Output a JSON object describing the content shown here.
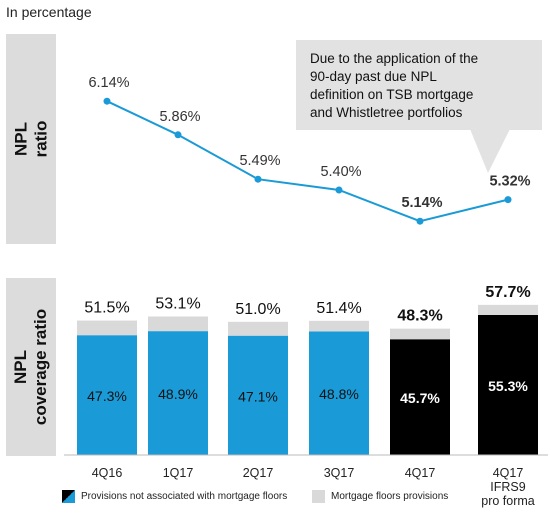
{
  "caption": "In percentage",
  "side_labels": {
    "npl_ratio": [
      "NPL",
      "ratio"
    ],
    "npl_coverage": [
      "NPL",
      "coverage ratio"
    ]
  },
  "callout": {
    "lines": [
      "Due to the application of the",
      "90-day past due NPL",
      "definition on TSB mortgage",
      "and Whistletree portfolios"
    ]
  },
  "legend": {
    "provisions": "Provisions not associated with mortgage floors",
    "floors": "Mortgage floors provisions"
  },
  "colors": {
    "line": "#1a9ad6",
    "bar_blue": "#1a9ad6",
    "bar_black": "#000000",
    "floors_grey": "#d9d9d9"
  },
  "chart_data": [
    {
      "type": "line",
      "categories": [
        "4Q16",
        "1Q17",
        "2Q17",
        "3Q17",
        "4Q17",
        "4Q17 IFRS9 pro forma"
      ],
      "series": [
        {
          "values": [
            6.14,
            5.86,
            5.49,
            5.4,
            5.14,
            5.32
          ]
        }
      ],
      "data_labels": [
        "6.14%",
        "5.86%",
        "5.49%",
        "5.40%",
        "5.14%",
        "5.32%"
      ],
      "bold_labels": [
        false,
        false,
        false,
        false,
        true,
        true
      ]
    },
    {
      "type": "bar",
      "stacked": true,
      "categories": [
        "4Q16",
        "1Q17",
        "2Q17",
        "3Q17",
        "4Q17",
        "4Q17\nIFRS9\npro forma"
      ],
      "series": [
        {
          "name": "Provisions not associated with mortgage floors",
          "values": [
            47.3,
            48.9,
            47.1,
            48.8,
            45.7,
            55.3
          ]
        },
        {
          "name": "Mortgage floors provisions",
          "values": [
            4.2,
            4.2,
            3.9,
            2.6,
            2.6,
            2.4
          ]
        }
      ],
      "totals": [
        51.5,
        53.1,
        51.0,
        51.4,
        48.3,
        57.7
      ],
      "inner_labels": [
        "47.3%",
        "48.9%",
        "47.1%",
        "48.8%",
        "45.7%",
        "55.3%"
      ],
      "total_labels": [
        "51.5%",
        "53.1%",
        "51.0%",
        "51.4%",
        "48.3%",
        "57.7%"
      ],
      "bar_colors": [
        "blue",
        "blue",
        "blue",
        "blue",
        "black",
        "black"
      ]
    }
  ]
}
